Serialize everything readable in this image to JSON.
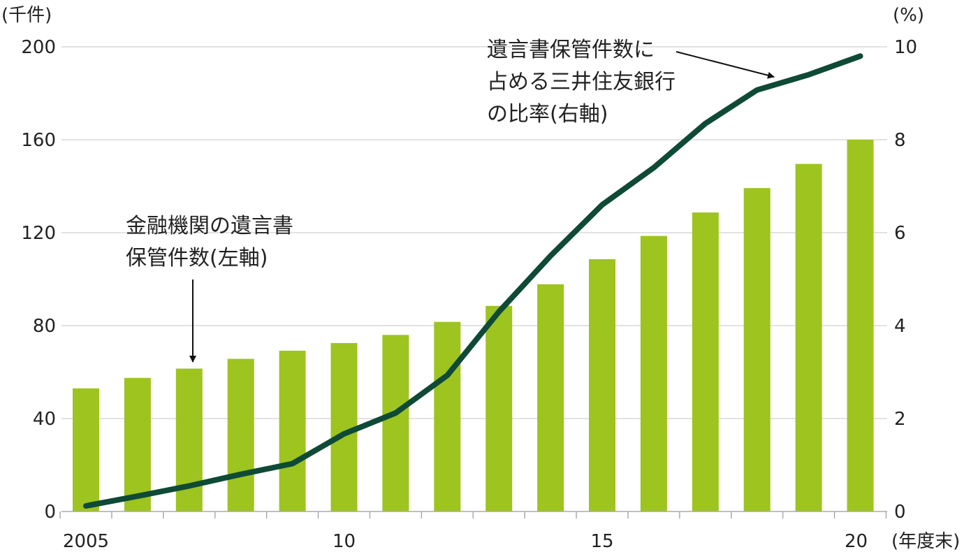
{
  "chart_data": {
    "type": "bar",
    "left_axis_unit": "(千件)",
    "right_axis_unit": "(%)",
    "x_axis_unit": "(年度末)",
    "x": [
      2005,
      2006,
      2007,
      2008,
      2009,
      2010,
      2011,
      2012,
      2013,
      2014,
      2015,
      2016,
      2017,
      2018,
      2019,
      2020
    ],
    "x_tick_labels": [
      {
        "x": 2005,
        "label": "2005"
      },
      {
        "x": 2010,
        "label": "10"
      },
      {
        "x": 2015,
        "label": "15"
      },
      {
        "x": 2020,
        "label": "20"
      }
    ],
    "y_left_ticks": [
      "0",
      "40",
      "80",
      "120",
      "160",
      "200"
    ],
    "y_right_ticks": [
      "0",
      "2",
      "4",
      "6",
      "8",
      "10"
    ],
    "ylim_left": [
      0,
      200
    ],
    "ylim_right": [
      0,
      10
    ],
    "grid": true,
    "series": [
      {
        "type": "bar",
        "axis": "left",
        "color": "#9dc41f",
        "values": [
          53,
          57.5,
          61.5,
          65.7,
          69.2,
          72.5,
          76,
          81.6,
          88.5,
          97.8,
          108.6,
          118.6,
          128.7,
          139.2,
          149.6,
          160
        ]
      },
      {
        "type": "line",
        "axis": "right",
        "color": "#0e4a35",
        "values": [
          0.12,
          0.33,
          0.55,
          0.8,
          1.03,
          1.67,
          2.12,
          2.93,
          4.3,
          5.5,
          6.6,
          7.4,
          8.35,
          9.07,
          9.4,
          9.8
        ]
      }
    ],
    "annotations": [
      {
        "lines": [
          "遺言書保管件数に",
          "占める三井住友銀行",
          "の比率(右軸)"
        ],
        "points_to_x": 2018
      },
      {
        "lines": [
          "金融機関の遺言書",
          "保管件数(左軸)"
        ],
        "points_to_x": 2007
      }
    ]
  }
}
